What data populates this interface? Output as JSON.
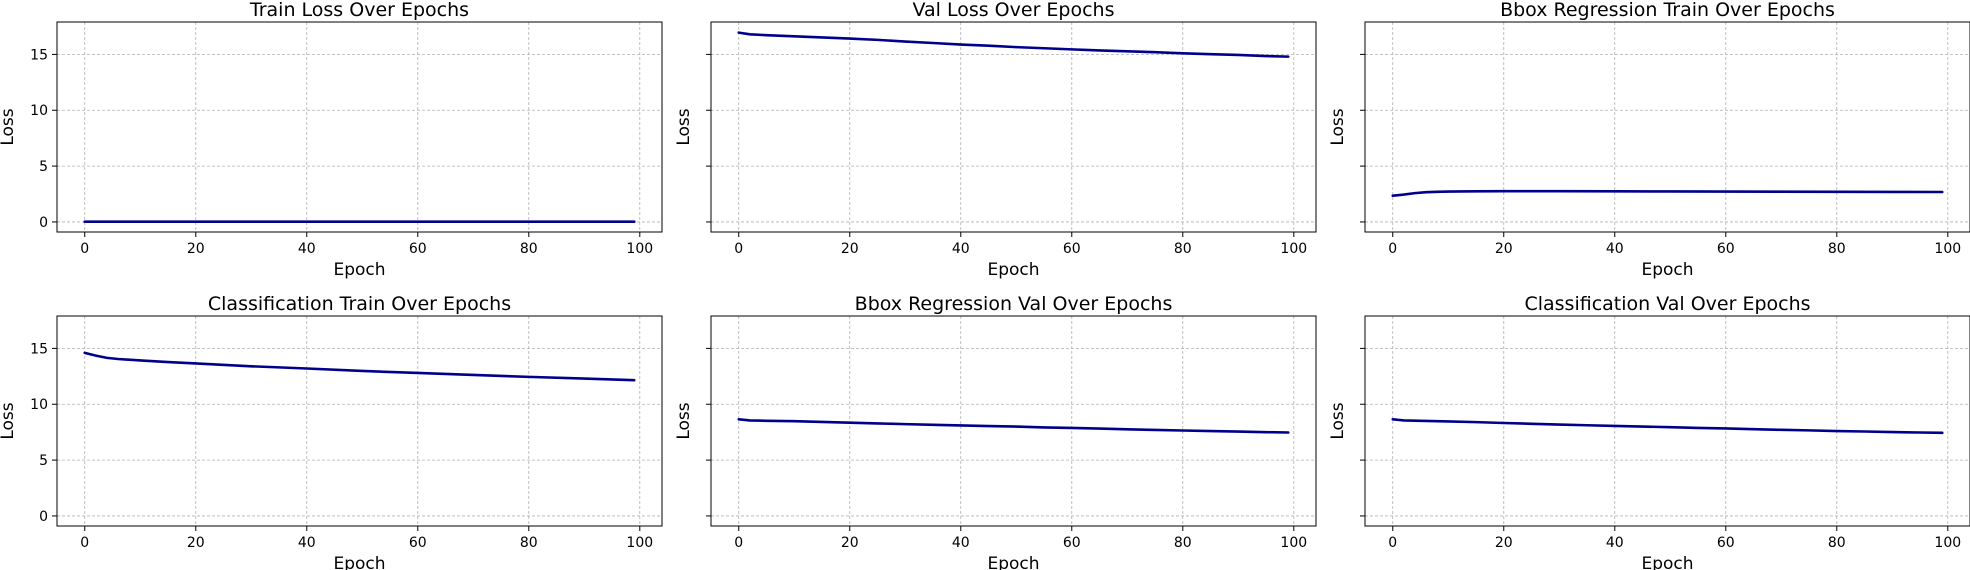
{
  "chart_data": [
    {
      "type": "line",
      "title": "Train Loss Over Epochs",
      "xlabel": "Epoch",
      "ylabel": "Loss",
      "xlim": [
        -5,
        104
      ],
      "ylim": [
        -0.9,
        17.9
      ],
      "xticks": [
        0,
        20,
        40,
        60,
        80,
        100
      ],
      "yticks": [
        0,
        5,
        10,
        15
      ],
      "show_yticklabels": true,
      "grid": true,
      "color": "#00008b",
      "series": [
        {
          "x": [
            0,
            10,
            20,
            30,
            40,
            50,
            60,
            70,
            80,
            90,
            99
          ],
          "values": [
            0.02,
            0.02,
            0.02,
            0.02,
            0.02,
            0.02,
            0.02,
            0.02,
            0.02,
            0.02,
            0.02
          ]
        }
      ]
    },
    {
      "type": "line",
      "title": "Val Loss Over Epochs",
      "xlabel": "Epoch",
      "ylabel": "Loss",
      "xlim": [
        -5,
        104
      ],
      "ylim": [
        -0.9,
        17.9
      ],
      "xticks": [
        0,
        20,
        40,
        60,
        80,
        100
      ],
      "yticks": [
        0,
        5,
        10,
        15
      ],
      "show_yticklabels": false,
      "grid": true,
      "color": "#00008b",
      "series": [
        {
          "x": [
            0,
            2,
            5,
            10,
            15,
            20,
            25,
            30,
            35,
            40,
            45,
            50,
            55,
            60,
            65,
            70,
            75,
            80,
            85,
            90,
            95,
            99
          ],
          "values": [
            16.95,
            16.8,
            16.72,
            16.62,
            16.52,
            16.42,
            16.3,
            16.15,
            16.02,
            15.88,
            15.78,
            15.65,
            15.55,
            15.45,
            15.35,
            15.28,
            15.2,
            15.1,
            15.02,
            14.95,
            14.85,
            14.8
          ]
        }
      ]
    },
    {
      "type": "line",
      "title": "Bbox Regression Train Over Epochs",
      "xlabel": "Epoch",
      "ylabel": "Loss",
      "xlim": [
        -5,
        104
      ],
      "ylim": [
        -0.9,
        17.9
      ],
      "xticks": [
        0,
        20,
        40,
        60,
        80,
        100
      ],
      "yticks": [
        0,
        5,
        10,
        15
      ],
      "show_yticklabels": false,
      "grid": true,
      "color": "#00008b",
      "series": [
        {
          "x": [
            0,
            2,
            4,
            6,
            8,
            10,
            15,
            20,
            30,
            40,
            50,
            60,
            70,
            80,
            90,
            99
          ],
          "values": [
            2.35,
            2.45,
            2.58,
            2.66,
            2.7,
            2.72,
            2.74,
            2.75,
            2.75,
            2.74,
            2.73,
            2.72,
            2.71,
            2.7,
            2.69,
            2.68
          ]
        }
      ]
    },
    {
      "type": "line",
      "title": "Classification Train Over Epochs",
      "xlabel": "Epoch",
      "ylabel": "Loss",
      "xlim": [
        -5,
        104
      ],
      "ylim": [
        -0.9,
        17.9
      ],
      "xticks": [
        0,
        20,
        40,
        60,
        80,
        100
      ],
      "yticks": [
        0,
        5,
        10,
        15
      ],
      "show_yticklabels": true,
      "grid": true,
      "color": "#00008b",
      "series": [
        {
          "x": [
            0,
            2,
            4,
            6,
            10,
            15,
            20,
            30,
            40,
            50,
            60,
            70,
            80,
            90,
            99
          ],
          "values": [
            14.6,
            14.35,
            14.15,
            14.05,
            13.92,
            13.78,
            13.65,
            13.4,
            13.2,
            12.98,
            12.8,
            12.62,
            12.45,
            12.3,
            12.15
          ]
        }
      ]
    },
    {
      "type": "line",
      "title": "Bbox Regression Val Over Epochs",
      "xlabel": "Epoch",
      "ylabel": "Loss",
      "xlim": [
        -5,
        104
      ],
      "ylim": [
        -0.9,
        17.9
      ],
      "xticks": [
        0,
        20,
        40,
        60,
        80,
        100
      ],
      "yticks": [
        0,
        5,
        10,
        15
      ],
      "show_yticklabels": false,
      "grid": true,
      "color": "#00008b",
      "series": [
        {
          "x": [
            0,
            2,
            5,
            10,
            15,
            20,
            25,
            30,
            35,
            40,
            45,
            50,
            55,
            60,
            65,
            70,
            75,
            80,
            85,
            90,
            95,
            99
          ],
          "values": [
            8.65,
            8.55,
            8.52,
            8.48,
            8.42,
            8.35,
            8.28,
            8.22,
            8.16,
            8.1,
            8.05,
            8.0,
            7.92,
            7.88,
            7.82,
            7.76,
            7.7,
            7.65,
            7.6,
            7.55,
            7.5,
            7.47
          ]
        }
      ]
    },
    {
      "type": "line",
      "title": "Classification Val Over Epochs",
      "xlabel": "Epoch",
      "ylabel": "Loss",
      "xlim": [
        -5,
        104
      ],
      "ylim": [
        -0.9,
        17.9
      ],
      "xticks": [
        0,
        20,
        40,
        60,
        80,
        100
      ],
      "yticks": [
        0,
        5,
        10,
        15
      ],
      "show_yticklabels": false,
      "grid": true,
      "color": "#00008b",
      "series": [
        {
          "x": [
            0,
            2,
            5,
            10,
            15,
            20,
            25,
            30,
            35,
            40,
            45,
            50,
            55,
            60,
            65,
            70,
            75,
            80,
            85,
            90,
            95,
            99
          ],
          "values": [
            8.65,
            8.55,
            8.52,
            8.46,
            8.4,
            8.32,
            8.25,
            8.18,
            8.12,
            8.06,
            8.0,
            7.95,
            7.88,
            7.83,
            7.77,
            7.71,
            7.66,
            7.6,
            7.56,
            7.51,
            7.47,
            7.44
          ]
        }
      ]
    }
  ]
}
